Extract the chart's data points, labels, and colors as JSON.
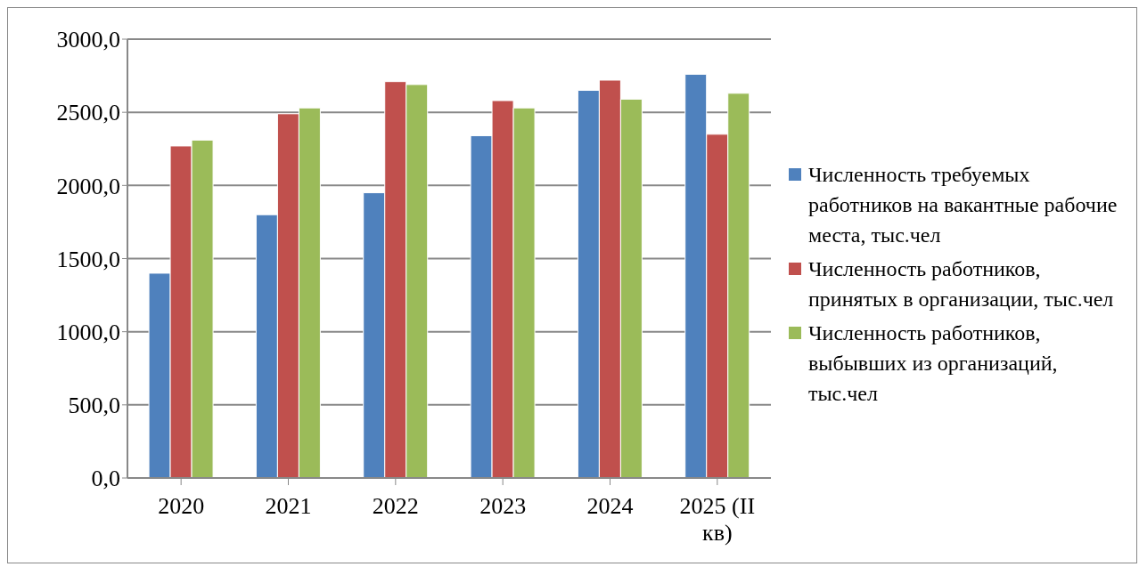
{
  "chart_data": {
    "type": "bar",
    "categories": [
      "2020",
      "2021",
      "2022",
      "2023",
      "2024",
      "2025 (II кв)"
    ],
    "series": [
      {
        "name": "Численность требуемых работников на вакантные рабочие места, тыс.чел",
        "color": "#4f81bd",
        "values": [
          1400,
          1800,
          1950,
          2340,
          2650,
          2760
        ]
      },
      {
        "name": "Численность работников, принятых в организации, тыс.чел",
        "color": "#c0504d",
        "values": [
          2270,
          2490,
          2710,
          2580,
          2720,
          2350
        ]
      },
      {
        "name": "Численность работников, выбывших из организаций, тыс.чел",
        "color": "#9bbb59",
        "values": [
          2310,
          2530,
          2690,
          2530,
          2590,
          2630
        ]
      }
    ],
    "ylim": [
      0,
      3000
    ],
    "yticks": [
      {
        "value": 0,
        "label": "0,0"
      },
      {
        "value": 500,
        "label": "500,0"
      },
      {
        "value": 1000,
        "label": "1000,0"
      },
      {
        "value": 1500,
        "label": "1500,0"
      },
      {
        "value": 2000,
        "label": "2000,0"
      },
      {
        "value": 2500,
        "label": "2500,0"
      },
      {
        "value": 3000,
        "label": "3000,0"
      }
    ],
    "grid": "y",
    "legend": "right"
  }
}
